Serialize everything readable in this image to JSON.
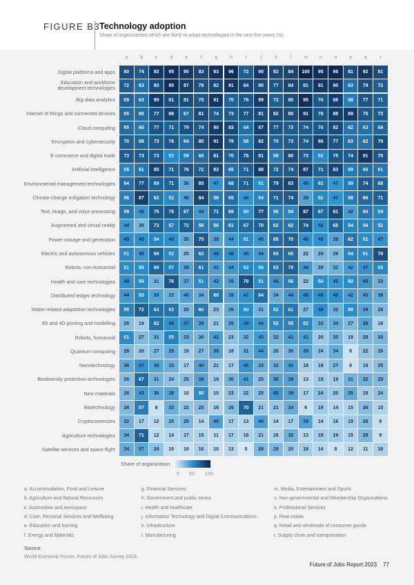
{
  "figure": {
    "label": "FIGURE B3",
    "title": "Technology adoption",
    "subtitle": "Share of organizations which are likely to adopt technologies in the next five years (%)"
  },
  "chart_data": {
    "type": "heatmap",
    "columns": [
      "a",
      "b",
      "c",
      "d",
      "e",
      "f",
      "g",
      "h",
      "i",
      "j",
      "k",
      "l",
      "m",
      "n",
      "o",
      "p",
      "q",
      "r"
    ],
    "rows": [
      "Digital platforms and apps",
      "Education and workforce development technologies",
      "Big-data analytics",
      "Internet of things and connected devices",
      "Cloud computing",
      "Encryption and cybersecurity",
      "E-commerce and digital trade",
      "Artificial intelligence",
      "Environmental management technologies",
      "Climate-change mitigation technology",
      "Text, image, and voice processing",
      "Augmented and virtual reality",
      "Power storage and generation",
      "Electric and autonomous vehicles",
      "Robots, non-humanoid",
      "Health and care technologies",
      "Distributed ledger technology",
      "Water-related adaptation technologies",
      "3D and 4D printing and modelling",
      "Robots, humanoid",
      "Quantum computing",
      "Nanotechnology",
      "Biodiversity protection technologies",
      "New materials",
      "Biotechnology",
      "Cryptocurrencies",
      "Agriculture technologies",
      "Satellite services and space flight"
    ],
    "values": [
      [
        80,
        74,
        92,
        95,
        90,
        83,
        93,
        96,
        72,
        90,
        82,
        84,
        100,
        95,
        98,
        81,
        92,
        81
      ],
      [
        72,
        63,
        80,
        95,
        87,
        78,
        82,
        91,
        84,
        80,
        77,
        84,
        81,
        91,
        90,
        63,
        79,
        72
      ],
      [
        69,
        63,
        89,
        81,
        81,
        75,
        91,
        70,
        76,
        89,
        72,
        80,
        95,
        76,
        88,
        58,
        77,
        71
      ],
      [
        65,
        65,
        77,
        86,
        67,
        81,
        74,
        73,
        77,
        81,
        82,
        80,
        91,
        76,
        88,
        89,
        75,
        73
      ],
      [
        65,
        60,
        77,
        71,
        79,
        74,
        90,
        83,
        64,
        87,
        77,
        73,
        74,
        76,
        82,
        62,
        63,
        69
      ],
      [
        70,
        68,
        73,
        76,
        64,
        80,
        91,
        78,
        58,
        82,
        70,
        73,
        74,
        86,
        77,
        63,
        62,
        79
      ],
      [
        73,
        73,
        73,
        52,
        59,
        65,
        81,
        70,
        78,
        81,
        59,
        80,
        73,
        52,
        75,
        74,
        91,
        75
      ],
      [
        55,
        61,
        85,
        71,
        76,
        72,
        83,
        65,
        71,
        88,
        72,
        74,
        87,
        71,
        83,
        59,
        65,
        61
      ],
      [
        64,
        77,
        69,
        71,
        36,
        85,
        47,
        68,
        71,
        51,
        79,
        83,
        48,
        62,
        47,
        59,
        74,
        68
      ],
      [
        56,
        87,
        62,
        52,
        40,
        84,
        58,
        65,
        46,
        54,
        71,
        74,
        39,
        52,
        47,
        58,
        66,
        71
      ],
      [
        59,
        45,
        75,
        76,
        67,
        44,
        71,
        65,
        50,
        77,
        56,
        54,
        87,
        67,
        81,
        42,
        60,
        54
      ],
      [
        44,
        30,
        73,
        57,
        72,
        56,
        56,
        61,
        67,
        70,
        62,
        62,
        74,
        48,
        68,
        54,
        54,
        52
      ],
      [
        49,
        48,
        54,
        48,
        35,
        75,
        38,
        44,
        51,
        45,
        65,
        70,
        48,
        48,
        38,
        62,
        51,
        47
      ],
      [
        51,
        45,
        69,
        52,
        25,
        62,
        48,
        48,
        45,
        44,
        65,
        65,
        22,
        29,
        28,
        54,
        51,
        79
      ],
      [
        51,
        50,
        69,
        57,
        39,
        61,
        41,
        44,
        53,
        50,
        63,
        70,
        44,
        29,
        32,
        42,
        47,
        53
      ],
      [
        48,
        50,
        31,
        76,
        37,
        51,
        42,
        39,
        78,
        51,
        46,
        56,
        22,
        50,
        45,
        50,
        45,
        33
      ],
      [
        44,
        53,
        39,
        33,
        40,
        34,
        60,
        39,
        47,
        64,
        34,
        44,
        48,
        48,
        48,
        42,
        40,
        36
      ],
      [
        55,
        72,
        63,
        62,
        29,
        60,
        23,
        35,
        50,
        31,
        52,
        61,
        27,
        48,
        32,
        50,
        39,
        28
      ],
      [
        26,
        19,
        62,
        48,
        47,
        39,
        21,
        35,
        49,
        44,
        52,
        55,
        52,
        33,
        34,
        27,
        39,
        16
      ],
      [
        51,
        27,
        31,
        55,
        33,
        30,
        41,
        23,
        32,
        43,
        32,
        41,
        41,
        20,
        30,
        19,
        28,
        30
      ],
      [
        28,
        20,
        27,
        35,
        18,
        27,
        38,
        18,
        31,
        44,
        26,
        30,
        39,
        24,
        34,
        8,
        22,
        26
      ],
      [
        36,
        47,
        39,
        33,
        17,
        40,
        21,
        17,
        46,
        33,
        32,
        41,
        18,
        19,
        27,
        8,
        19,
        25
      ],
      [
        26,
        67,
        31,
        24,
        25,
        39,
        19,
        30,
        41,
        25,
        38,
        39,
        13,
        19,
        19,
        31,
        32,
        29
      ],
      [
        28,
        43,
        36,
        38,
        10,
        50,
        15,
        23,
        22,
        25,
        45,
        39,
        17,
        24,
        20,
        35,
        19,
        24
      ],
      [
        28,
        57,
        8,
        33,
        22,
        25,
        16,
        26,
        70,
        21,
        21,
        34,
        9,
        19,
        14,
        15,
        26,
        15
      ],
      [
        32,
        17,
        12,
        25,
        29,
        14,
        40,
        17,
        13,
        40,
        14,
        17,
        39,
        14,
        16,
        19,
        26,
        9
      ],
      [
        34,
        71,
        12,
        14,
        17,
        15,
        11,
        17,
        16,
        21,
        16,
        32,
        13,
        19,
        19,
        15,
        29,
        9
      ],
      [
        34,
        37,
        24,
        10,
        10,
        16,
        10,
        13,
        5,
        28,
        28,
        20,
        18,
        14,
        8,
        12,
        11,
        16
      ]
    ],
    "color_scale": {
      "title": "Share of organization",
      "ticks": [
        "0",
        "50",
        "100"
      ],
      "range": [
        0,
        100
      ],
      "colors": [
        "#e9f2f9",
        "#2b8ccc",
        "#0c2450"
      ]
    }
  },
  "notes": [
    "a. Accommodation, Food and Leisure",
    "b. Agriculture and Natural Resources",
    "c. Automotive and Aerospace",
    "d. Care, Personal Services and Wellbeing",
    "e. Education and training",
    "f. Energy and Materials",
    "g. Financial Services",
    "h. Government and public sector",
    "i. Health and healthcare",
    "j. Information Technology and Digital Communications",
    "k. Infrastructure",
    "l. Manufacturing",
    "m. Media, Entertainment and Sports",
    "n. Non-governmental and Membership Organisations",
    "o. Professional Services",
    "p. Real estate",
    "q. Retail and wholesale of consumer goods",
    "r. Supply chain and transportation"
  ],
  "source": {
    "heading": "Source",
    "text": "World Economic Forum, Future of Jobs Survey 2023."
  },
  "footer": {
    "report": "Future of Jobs Report 2023",
    "page": "77"
  }
}
